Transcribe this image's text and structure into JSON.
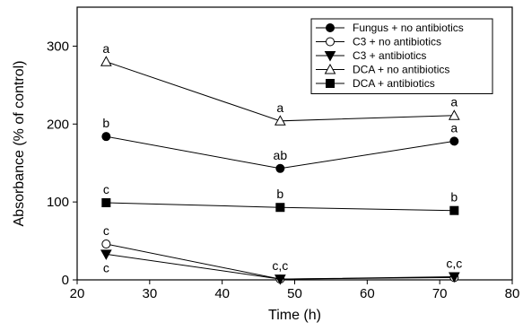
{
  "chart_data": {
    "type": "line",
    "title": "",
    "xlabel": "Time (h)",
    "ylabel": "Absorbance (% of control)",
    "xlim": [
      20,
      80
    ],
    "ylim": [
      0,
      350
    ],
    "xticks": [
      20,
      30,
      40,
      50,
      60,
      70,
      80
    ],
    "yticks": [
      0,
      100,
      200,
      300
    ],
    "grid": false,
    "legend_position": "top-right",
    "series": [
      {
        "name": "Fungus + no antibiotics",
        "marker": "circle-filled",
        "x": [
          24,
          48,
          72
        ],
        "y": [
          184,
          143,
          178
        ],
        "labels": [
          "b",
          "ab",
          "a"
        ]
      },
      {
        "name": "C3 + no antibiotics",
        "marker": "circle-open",
        "x": [
          24,
          48,
          72
        ],
        "y": [
          46,
          1,
          3
        ],
        "labels": [
          "c",
          "",
          ""
        ]
      },
      {
        "name": "C3 + antibiotics",
        "marker": "triangle-down-filled",
        "x": [
          24,
          48,
          72
        ],
        "y": [
          33,
          1,
          4
        ],
        "labels": [
          "c",
          "c,c",
          "c,c"
        ]
      },
      {
        "name": "DCA + no antibiotics",
        "marker": "triangle-up-open",
        "x": [
          24,
          48,
          72
        ],
        "y": [
          280,
          204,
          211
        ],
        "labels": [
          "a",
          "a",
          "a"
        ]
      },
      {
        "name": "DCA + antibiotics",
        "marker": "square-filled",
        "x": [
          24,
          48,
          72
        ],
        "y": [
          99,
          93,
          89
        ],
        "labels": [
          "c",
          "b",
          "b"
        ]
      }
    ]
  }
}
